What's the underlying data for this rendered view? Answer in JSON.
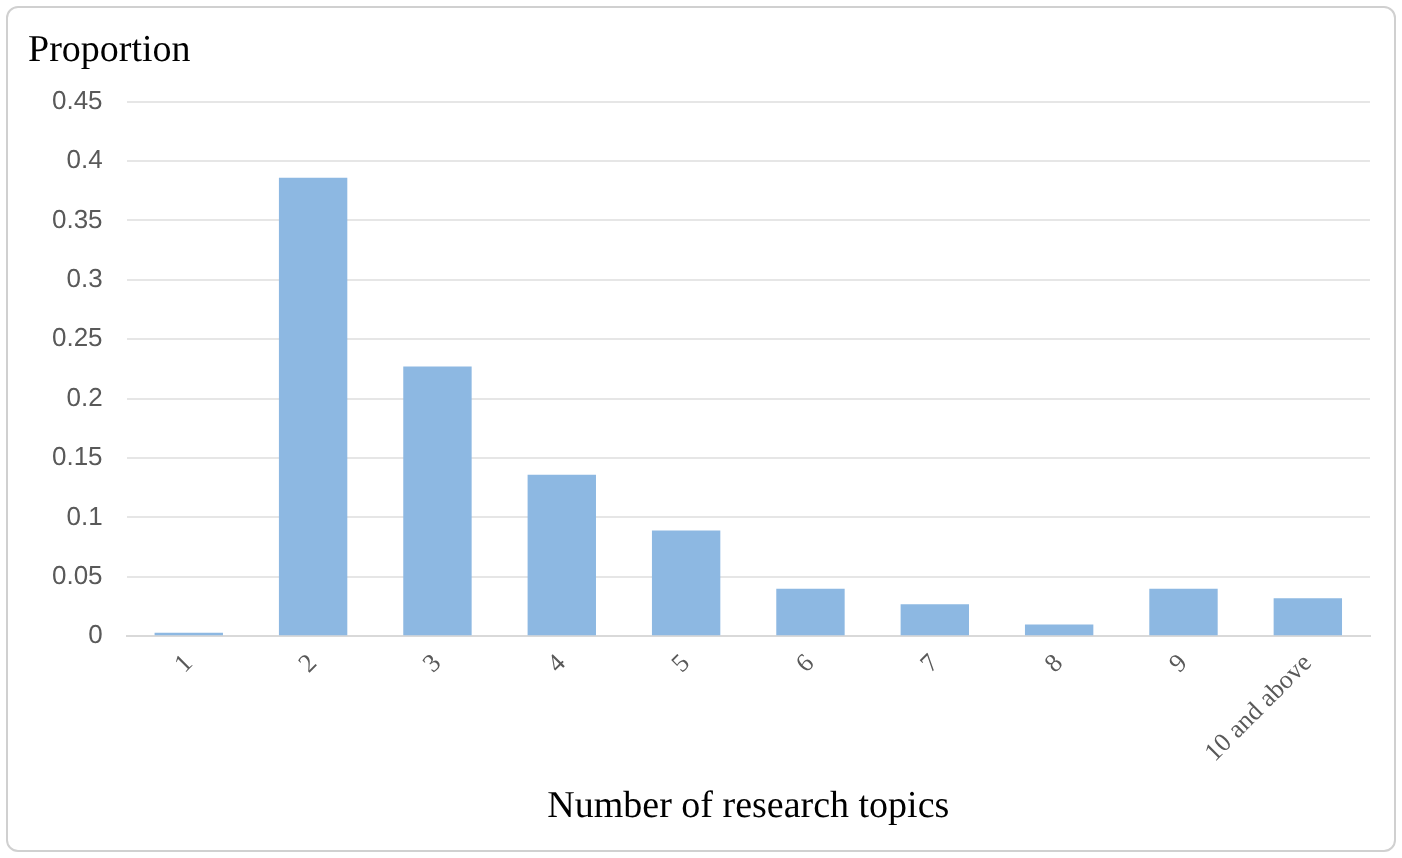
{
  "chart_data": {
    "type": "bar",
    "ylabel": "Proportion",
    "xlabel": "Number of research topics",
    "categories": [
      "1",
      "2",
      "3",
      "4",
      "5",
      "6",
      "7",
      "8",
      "9",
      "10 and above"
    ],
    "values": [
      0.003,
      0.386,
      0.227,
      0.136,
      0.089,
      0.04,
      0.027,
      0.01,
      0.04,
      0.032
    ],
    "color": "#8db8e2",
    "ylim": [
      0,
      0.45
    ],
    "yticks": [
      0,
      0.05,
      0.1,
      0.15,
      0.2,
      0.25,
      0.3,
      0.35,
      0.4,
      0.45
    ],
    "grid": "y",
    "legend": false
  }
}
